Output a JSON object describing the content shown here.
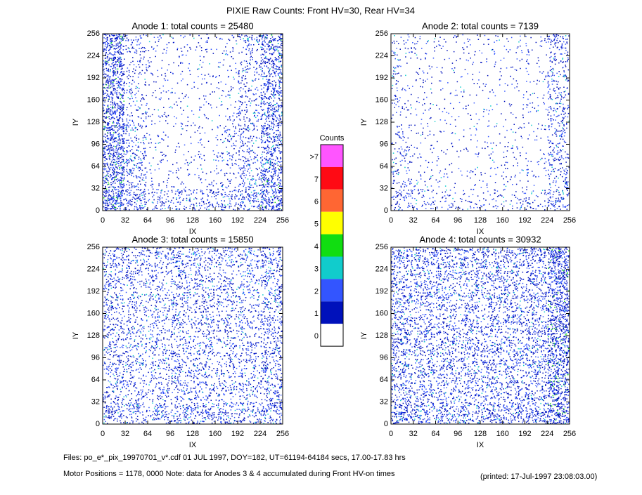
{
  "chart_data": [
    {
      "type": "density",
      "title": "Anode 1: total counts = 25480",
      "xlabel": "IX",
      "ylabel": "IY",
      "xlim": [
        0,
        256
      ],
      "ylim": [
        0,
        256
      ],
      "xticks": [
        0,
        32,
        64,
        96,
        128,
        160,
        192,
        224,
        256
      ],
      "yticks": [
        0,
        32,
        64,
        96,
        128,
        160,
        192,
        224,
        256
      ],
      "grid_density": [
        [
          0.9,
          0.5,
          0.3,
          0.3,
          0.35,
          0.35,
          0.5,
          0.8
        ],
        [
          0.8,
          0.35,
          0.1,
          0.1,
          0.1,
          0.15,
          0.35,
          0.7
        ],
        [
          0.8,
          0.35,
          0.1,
          0.08,
          0.08,
          0.2,
          0.3,
          0.6
        ],
        [
          0.8,
          0.3,
          0.1,
          0.08,
          0.08,
          0.2,
          0.3,
          0.6
        ],
        [
          0.75,
          0.2,
          0.1,
          0.08,
          0.08,
          0.1,
          0.3,
          0.6
        ],
        [
          0.75,
          0.2,
          0.1,
          0.08,
          0.08,
          0.1,
          0.25,
          0.6
        ],
        [
          0.75,
          0.2,
          0.1,
          0.08,
          0.08,
          0.1,
          0.25,
          0.6
        ],
        [
          0.8,
          0.25,
          0.12,
          0.1,
          0.1,
          0.12,
          0.3,
          0.65
        ]
      ]
    },
    {
      "type": "density",
      "title": "Anode 2: total counts = 7139",
      "xlabel": "IX",
      "ylabel": "IY",
      "xlim": [
        0,
        256
      ],
      "ylim": [
        0,
        256
      ],
      "xticks": [
        0,
        32,
        64,
        96,
        128,
        160,
        192,
        224,
        256
      ],
      "yticks": [
        0,
        32,
        64,
        96,
        128,
        160,
        192,
        224,
        256
      ],
      "grid_density": [
        [
          0.3,
          0.2,
          0.15,
          0.15,
          0.15,
          0.15,
          0.2,
          0.4
        ],
        [
          0.2,
          0.1,
          0.08,
          0.08,
          0.08,
          0.1,
          0.1,
          0.3
        ],
        [
          0.2,
          0.08,
          0.06,
          0.06,
          0.06,
          0.12,
          0.08,
          0.3
        ],
        [
          0.15,
          0.08,
          0.06,
          0.06,
          0.06,
          0.08,
          0.08,
          0.3
        ],
        [
          0.12,
          0.08,
          0.06,
          0.06,
          0.06,
          0.06,
          0.08,
          0.3
        ],
        [
          0.12,
          0.08,
          0.06,
          0.06,
          0.06,
          0.06,
          0.08,
          0.3
        ],
        [
          0.12,
          0.08,
          0.06,
          0.06,
          0.06,
          0.06,
          0.08,
          0.3
        ],
        [
          0.15,
          0.1,
          0.08,
          0.08,
          0.08,
          0.08,
          0.1,
          0.35
        ]
      ]
    },
    {
      "type": "density",
      "title": "Anode 3: total counts = 15850",
      "xlabel": "IX",
      "ylabel": "IY",
      "xlim": [
        0,
        256
      ],
      "ylim": [
        0,
        256
      ],
      "xticks": [
        0,
        32,
        64,
        96,
        128,
        160,
        192,
        224,
        256
      ],
      "yticks": [
        0,
        32,
        64,
        96,
        128,
        160,
        192,
        224,
        256
      ],
      "grid_density": [
        [
          0.45,
          0.4,
          0.4,
          0.45,
          0.45,
          0.4,
          0.4,
          0.5
        ],
        [
          0.35,
          0.3,
          0.3,
          0.35,
          0.35,
          0.3,
          0.3,
          0.4
        ],
        [
          0.35,
          0.3,
          0.3,
          0.35,
          0.35,
          0.3,
          0.3,
          0.4
        ],
        [
          0.35,
          0.3,
          0.3,
          0.35,
          0.35,
          0.3,
          0.3,
          0.4
        ],
        [
          0.35,
          0.3,
          0.3,
          0.35,
          0.35,
          0.3,
          0.3,
          0.4
        ],
        [
          0.35,
          0.3,
          0.3,
          0.35,
          0.35,
          0.3,
          0.3,
          0.4
        ],
        [
          0.35,
          0.3,
          0.3,
          0.35,
          0.35,
          0.3,
          0.3,
          0.4
        ],
        [
          0.4,
          0.35,
          0.35,
          0.4,
          0.4,
          0.35,
          0.35,
          0.45
        ]
      ]
    },
    {
      "type": "density",
      "title": "Anode 4: total counts = 30932",
      "xlabel": "IX",
      "ylabel": "IY",
      "xlim": [
        0,
        256
      ],
      "ylim": [
        0,
        256
      ],
      "xticks": [
        0,
        32,
        64,
        96,
        128,
        160,
        192,
        224,
        256
      ],
      "yticks": [
        0,
        32,
        64,
        96,
        128,
        160,
        192,
        224,
        256
      ],
      "grid_density": [
        [
          0.6,
          0.5,
          0.5,
          0.5,
          0.5,
          0.5,
          0.55,
          0.85
        ],
        [
          0.45,
          0.4,
          0.4,
          0.4,
          0.4,
          0.4,
          0.45,
          0.8
        ],
        [
          0.45,
          0.4,
          0.4,
          0.4,
          0.4,
          0.4,
          0.45,
          0.8
        ],
        [
          0.45,
          0.4,
          0.4,
          0.4,
          0.4,
          0.4,
          0.45,
          0.8
        ],
        [
          0.45,
          0.4,
          0.4,
          0.4,
          0.4,
          0.4,
          0.45,
          0.8
        ],
        [
          0.45,
          0.4,
          0.4,
          0.4,
          0.4,
          0.4,
          0.45,
          0.8
        ],
        [
          0.45,
          0.4,
          0.4,
          0.4,
          0.4,
          0.4,
          0.45,
          0.8
        ],
        [
          0.5,
          0.45,
          0.45,
          0.45,
          0.45,
          0.45,
          0.5,
          0.85
        ]
      ]
    }
  ],
  "title": "PIXIE Raw Counts:  Front HV=30, Rear HV=34",
  "colorbar": {
    "title": "Counts",
    "labels": [
      ">7",
      "7",
      "6",
      "5",
      "4",
      "3",
      "2",
      "1",
      "0"
    ],
    "colors": [
      "#ff55ff",
      "#ff0a14",
      "#ff6633",
      "#ffff00",
      "#11dd11",
      "#11cccc",
      "#3355ff",
      "#0011bb",
      "#ffffff"
    ]
  },
  "footer": {
    "files": "Files: po_e*_pix_19970701_v*.cdf    01 JUL 1997, DOY=182, UT=61194-64184 secs, 17.00-17.83 hrs",
    "motor": "Motor Positions = 1178, 0000    Note: data for Anodes 3 & 4 accumulated during Front HV-on times",
    "printed": "(printed: 17-Jul-1997 23:08:03.00)"
  }
}
